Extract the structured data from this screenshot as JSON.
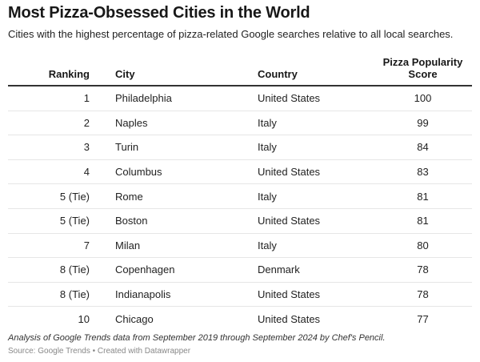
{
  "title": "Most Pizza-Obsessed Cities in the World",
  "subtitle": "Cities with the highest percentage of pizza-related Google searches relative to all local searches.",
  "chart_data": {
    "type": "table",
    "columns": [
      "Ranking",
      "City",
      "Country",
      "Pizza Popularity Score"
    ],
    "rows": [
      {
        "ranking": "1",
        "city": "Philadelphia",
        "country": "United States",
        "score": 100
      },
      {
        "ranking": "2",
        "city": "Naples",
        "country": "Italy",
        "score": 99
      },
      {
        "ranking": "3",
        "city": "Turin",
        "country": "Italy",
        "score": 84
      },
      {
        "ranking": "4",
        "city": "Columbus",
        "country": "United States",
        "score": 83
      },
      {
        "ranking": "5 (Tie)",
        "city": "Rome",
        "country": "Italy",
        "score": 81
      },
      {
        "ranking": "5 (Tie)",
        "city": "Boston",
        "country": "United States",
        "score": 81
      },
      {
        "ranking": "7",
        "city": "Milan",
        "country": "Italy",
        "score": 80
      },
      {
        "ranking": "8 (Tie)",
        "city": "Copenhagen",
        "country": "Denmark",
        "score": 78
      },
      {
        "ranking": "8 (Tie)",
        "city": "Indianapolis",
        "country": "United States",
        "score": 78
      },
      {
        "ranking": "10",
        "city": "Chicago",
        "country": "United States",
        "score": 77
      }
    ]
  },
  "notes": "Analysis of Google Trends data from September 2019 through September 2024 by Chef's Pencil.",
  "source": "Source: Google Trends • Created with Datawrapper"
}
